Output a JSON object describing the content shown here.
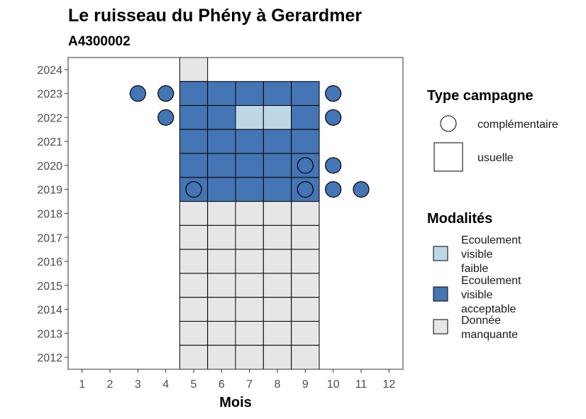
{
  "chart_data": {
    "type": "heatmap",
    "title": "Le ruisseau du Phény à Gerardmer",
    "subtitle": "A4300002",
    "xlabel": "Mois",
    "ylabel": "",
    "x_ticks": [
      "1",
      "2",
      "3",
      "4",
      "5",
      "6",
      "7",
      "8",
      "9",
      "10",
      "11",
      "12"
    ],
    "y_ticks": [
      "2012",
      "2013",
      "2014",
      "2015",
      "2016",
      "2017",
      "2018",
      "2019",
      "2020",
      "2021",
      "2022",
      "2023",
      "2024"
    ],
    "xlim": [
      0.5,
      12.5
    ],
    "ylim": [
      2011.5,
      2024.5
    ],
    "grid": false,
    "legend_position": "right",
    "colors": {
      "faible": "#bdd7e7",
      "acceptable": "#4575b4",
      "manquante": "#e6e6e6"
    },
    "legends": {
      "type": {
        "title": "Type campagne",
        "items": [
          {
            "key": "complementaire",
            "label": "complémentaire",
            "shape": "circle"
          },
          {
            "key": "usuelle",
            "label": "usuelle",
            "shape": "square"
          }
        ]
      },
      "modalites": {
        "title": "Modalités",
        "items": [
          {
            "key": "faible",
            "label_lines": [
              "Ecoulement",
              "visible",
              "faible"
            ]
          },
          {
            "key": "acceptable",
            "label_lines": [
              "Ecoulement",
              "visible",
              "acceptable"
            ]
          },
          {
            "key": "manquante",
            "label_lines": [
              "Donnée",
              "manquante"
            ]
          }
        ]
      }
    },
    "usuelle": [
      {
        "month": 5,
        "year": 2024,
        "modalite": "manquante"
      },
      {
        "month": 5,
        "year": 2023,
        "modalite": "acceptable"
      },
      {
        "month": 6,
        "year": 2023,
        "modalite": "acceptable"
      },
      {
        "month": 7,
        "year": 2023,
        "modalite": "acceptable"
      },
      {
        "month": 8,
        "year": 2023,
        "modalite": "acceptable"
      },
      {
        "month": 9,
        "year": 2023,
        "modalite": "acceptable"
      },
      {
        "month": 5,
        "year": 2022,
        "modalite": "acceptable"
      },
      {
        "month": 6,
        "year": 2022,
        "modalite": "acceptable"
      },
      {
        "month": 7,
        "year": 2022,
        "modalite": "faible"
      },
      {
        "month": 8,
        "year": 2022,
        "modalite": "faible"
      },
      {
        "month": 9,
        "year": 2022,
        "modalite": "acceptable"
      },
      {
        "month": 5,
        "year": 2021,
        "modalite": "acceptable"
      },
      {
        "month": 6,
        "year": 2021,
        "modalite": "acceptable"
      },
      {
        "month": 7,
        "year": 2021,
        "modalite": "acceptable"
      },
      {
        "month": 8,
        "year": 2021,
        "modalite": "acceptable"
      },
      {
        "month": 9,
        "year": 2021,
        "modalite": "acceptable"
      },
      {
        "month": 5,
        "year": 2020,
        "modalite": "acceptable"
      },
      {
        "month": 6,
        "year": 2020,
        "modalite": "acceptable"
      },
      {
        "month": 7,
        "year": 2020,
        "modalite": "acceptable"
      },
      {
        "month": 8,
        "year": 2020,
        "modalite": "acceptable"
      },
      {
        "month": 9,
        "year": 2020,
        "modalite": "acceptable"
      },
      {
        "month": 5,
        "year": 2019,
        "modalite": "acceptable"
      },
      {
        "month": 6,
        "year": 2019,
        "modalite": "acceptable"
      },
      {
        "month": 7,
        "year": 2019,
        "modalite": "acceptable"
      },
      {
        "month": 8,
        "year": 2019,
        "modalite": "acceptable"
      },
      {
        "month": 9,
        "year": 2019,
        "modalite": "acceptable"
      },
      {
        "month": 5,
        "year": 2018,
        "modalite": "manquante"
      },
      {
        "month": 6,
        "year": 2018,
        "modalite": "manquante"
      },
      {
        "month": 7,
        "year": 2018,
        "modalite": "manquante"
      },
      {
        "month": 8,
        "year": 2018,
        "modalite": "manquante"
      },
      {
        "month": 9,
        "year": 2018,
        "modalite": "manquante"
      },
      {
        "month": 5,
        "year": 2017,
        "modalite": "manquante"
      },
      {
        "month": 6,
        "year": 2017,
        "modalite": "manquante"
      },
      {
        "month": 7,
        "year": 2017,
        "modalite": "manquante"
      },
      {
        "month": 8,
        "year": 2017,
        "modalite": "manquante"
      },
      {
        "month": 9,
        "year": 2017,
        "modalite": "manquante"
      },
      {
        "month": 5,
        "year": 2016,
        "modalite": "manquante"
      },
      {
        "month": 6,
        "year": 2016,
        "modalite": "manquante"
      },
      {
        "month": 7,
        "year": 2016,
        "modalite": "manquante"
      },
      {
        "month": 8,
        "year": 2016,
        "modalite": "manquante"
      },
      {
        "month": 9,
        "year": 2016,
        "modalite": "manquante"
      },
      {
        "month": 5,
        "year": 2015,
        "modalite": "manquante"
      },
      {
        "month": 6,
        "year": 2015,
        "modalite": "manquante"
      },
      {
        "month": 7,
        "year": 2015,
        "modalite": "manquante"
      },
      {
        "month": 8,
        "year": 2015,
        "modalite": "manquante"
      },
      {
        "month": 9,
        "year": 2015,
        "modalite": "manquante"
      },
      {
        "month": 5,
        "year": 2014,
        "modalite": "manquante"
      },
      {
        "month": 6,
        "year": 2014,
        "modalite": "manquante"
      },
      {
        "month": 7,
        "year": 2014,
        "modalite": "manquante"
      },
      {
        "month": 8,
        "year": 2014,
        "modalite": "manquante"
      },
      {
        "month": 9,
        "year": 2014,
        "modalite": "manquante"
      },
      {
        "month": 5,
        "year": 2013,
        "modalite": "manquante"
      },
      {
        "month": 6,
        "year": 2013,
        "modalite": "manquante"
      },
      {
        "month": 7,
        "year": 2013,
        "modalite": "manquante"
      },
      {
        "month": 8,
        "year": 2013,
        "modalite": "manquante"
      },
      {
        "month": 9,
        "year": 2013,
        "modalite": "manquante"
      },
      {
        "month": 5,
        "year": 2012,
        "modalite": "manquante"
      },
      {
        "month": 6,
        "year": 2012,
        "modalite": "manquante"
      },
      {
        "month": 7,
        "year": 2012,
        "modalite": "manquante"
      },
      {
        "month": 8,
        "year": 2012,
        "modalite": "manquante"
      },
      {
        "month": 9,
        "year": 2012,
        "modalite": "manquante"
      }
    ],
    "complementaire": [
      {
        "month": 3,
        "year": 2023,
        "modalite": "acceptable"
      },
      {
        "month": 4,
        "year": 2023,
        "modalite": "acceptable"
      },
      {
        "month": 10,
        "year": 2023,
        "modalite": "acceptable"
      },
      {
        "month": 4,
        "year": 2022,
        "modalite": "acceptable"
      },
      {
        "month": 10,
        "year": 2022,
        "modalite": "acceptable"
      },
      {
        "month": 9,
        "year": 2020,
        "modalite": "acceptable"
      },
      {
        "month": 10,
        "year": 2020,
        "modalite": "acceptable"
      },
      {
        "month": 5,
        "year": 2019,
        "modalite": "acceptable"
      },
      {
        "month": 9,
        "year": 2019,
        "modalite": "acceptable"
      },
      {
        "month": 10,
        "year": 2019,
        "modalite": "acceptable"
      },
      {
        "month": 11,
        "year": 2019,
        "modalite": "acceptable"
      }
    ]
  }
}
